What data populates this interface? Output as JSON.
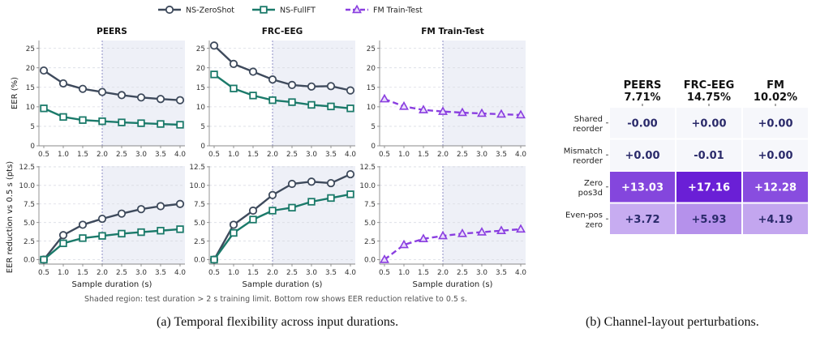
{
  "legend": {
    "items": [
      {
        "name": "NS-ZeroShot",
        "color": "#3e4a5c",
        "marker": "circle",
        "dash": false
      },
      {
        "name": "NS-FullFT",
        "color": "#1b7a6a",
        "marker": "square",
        "dash": false
      },
      {
        "name": "FM Train-Test",
        "color": "#8a3ee0",
        "marker": "triangle",
        "dash": true
      }
    ]
  },
  "panel_a": {
    "caption": "(a) Temporal flexibility across input durations.",
    "note": "Shaded region: test duration > 2 s training limit. Bottom row shows EER reduction relative to 0.5 s.",
    "xlabel": "Sample duration (s)",
    "ylabel_top": "EER (%)",
    "ylabel_bottom": "EER reduction vs 0.5 s (pts)",
    "titles": [
      "PEERS",
      "FRC-EEG",
      "FM Train-Test"
    ]
  },
  "panel_b": {
    "caption": "(b) Channel-layout perturbations.",
    "columns": [
      {
        "name": "PEERS",
        "value": "7.71%"
      },
      {
        "name": "FRC-EEG",
        "value": "14.75%"
      },
      {
        "name": "FM",
        "value": "10.02%"
      }
    ],
    "rows": [
      {
        "label": [
          "Shared",
          "reorder"
        ],
        "cells": [
          "-0.00",
          "+0.00",
          "+0.00"
        ],
        "values": [
          0.0,
          0.0,
          0.0
        ]
      },
      {
        "label": [
          "Mismatch",
          "reorder"
        ],
        "cells": [
          "+0.00",
          "-0.01",
          "+0.00"
        ],
        "values": [
          0.0,
          -0.01,
          0.0
        ]
      },
      {
        "label": [
          "Zero",
          "pos3d"
        ],
        "cells": [
          "+13.03",
          "+17.16",
          "+12.28"
        ],
        "values": [
          13.03,
          17.16,
          12.28
        ]
      },
      {
        "label": [
          "Even-pos",
          "zero"
        ],
        "cells": [
          "+3.72",
          "+5.93",
          "+4.19"
        ],
        "values": [
          3.72,
          5.93,
          4.19
        ]
      }
    ]
  },
  "chart_data": [
    {
      "type": "line",
      "title": "PEERS",
      "row": "top",
      "x": [
        0.5,
        1.0,
        1.5,
        2.0,
        2.5,
        3.0,
        3.5,
        4.0
      ],
      "xticks": [
        "0.5",
        "1.0",
        "1.5",
        "2.0",
        "2.5",
        "3.0",
        "3.5",
        "4.0"
      ],
      "ylim": [
        0,
        27
      ],
      "yticks": [
        0,
        5,
        10,
        15,
        20,
        25
      ],
      "series": [
        {
          "name": "NS-ZeroShot",
          "values": [
            19.3,
            16.0,
            14.6,
            13.8,
            13.0,
            12.4,
            12.0,
            11.7
          ]
        },
        {
          "name": "NS-FullFT",
          "values": [
            9.6,
            7.4,
            6.6,
            6.3,
            6.0,
            5.8,
            5.6,
            5.4
          ]
        }
      ]
    },
    {
      "type": "line",
      "title": "FRC-EEG",
      "row": "top",
      "x": [
        0.5,
        1.0,
        1.5,
        2.0,
        2.5,
        3.0,
        3.5,
        4.0
      ],
      "xticks": [
        "0.5",
        "1.0",
        "1.5",
        "2.0",
        "2.5",
        "3.0",
        "3.5",
        "4.0"
      ],
      "ylim": [
        0,
        27
      ],
      "yticks": [
        0,
        5,
        10,
        15,
        20,
        25
      ],
      "series": [
        {
          "name": "NS-ZeroShot",
          "values": [
            25.7,
            21.0,
            19.0,
            17.0,
            15.6,
            15.2,
            15.3,
            14.2
          ]
        },
        {
          "name": "NS-FullFT",
          "values": [
            18.3,
            14.7,
            12.9,
            11.7,
            11.2,
            10.5,
            10.1,
            9.6
          ]
        }
      ]
    },
    {
      "type": "line",
      "title": "FM Train-Test",
      "row": "top",
      "x": [
        0.5,
        1.0,
        1.5,
        2.0,
        2.5,
        3.0,
        3.5,
        4.0
      ],
      "xticks": [
        "0.5",
        "1.0",
        "1.5",
        "2.0",
        "2.5",
        "3.0",
        "3.5",
        "4.0"
      ],
      "ylim": [
        0,
        27
      ],
      "yticks": [
        0,
        5,
        10,
        15,
        20,
        25
      ],
      "series": [
        {
          "name": "FM Train-Test",
          "values": [
            12.0,
            10.1,
            9.2,
            8.8,
            8.5,
            8.3,
            8.1,
            7.9
          ]
        }
      ]
    },
    {
      "type": "line",
      "title": "",
      "row": "bottom",
      "x": [
        0.5,
        1.0,
        1.5,
        2.0,
        2.5,
        3.0,
        3.5,
        4.0
      ],
      "xticks": [
        "0.5",
        "1.0",
        "1.5",
        "2.0",
        "2.5",
        "3.0",
        "3.5",
        "4.0"
      ],
      "ylim": [
        -0.6,
        12.6
      ],
      "yticks": [
        0.0,
        2.5,
        5.0,
        7.5,
        10.0,
        12.5
      ],
      "series": [
        {
          "name": "NS-ZeroShot",
          "values": [
            0.0,
            3.3,
            4.7,
            5.5,
            6.2,
            6.8,
            7.2,
            7.5
          ]
        },
        {
          "name": "NS-FullFT",
          "values": [
            0.0,
            2.2,
            2.9,
            3.2,
            3.5,
            3.7,
            3.9,
            4.1
          ]
        }
      ]
    },
    {
      "type": "line",
      "title": "",
      "row": "bottom",
      "x": [
        0.5,
        1.0,
        1.5,
        2.0,
        2.5,
        3.0,
        3.5,
        4.0
      ],
      "xticks": [
        "0.5",
        "1.0",
        "1.5",
        "2.0",
        "2.5",
        "3.0",
        "3.5",
        "4.0"
      ],
      "ylim": [
        -0.6,
        12.6
      ],
      "yticks": [
        0.0,
        2.5,
        5.0,
        7.5,
        10.0,
        12.5
      ],
      "series": [
        {
          "name": "NS-ZeroShot",
          "values": [
            0.0,
            4.7,
            6.6,
            8.7,
            10.2,
            10.5,
            10.3,
            11.5
          ]
        },
        {
          "name": "NS-FullFT",
          "values": [
            0.0,
            3.6,
            5.4,
            6.6,
            7.0,
            7.8,
            8.3,
            8.8
          ]
        }
      ]
    },
    {
      "type": "line",
      "title": "",
      "row": "bottom",
      "x": [
        0.5,
        1.0,
        1.5,
        2.0,
        2.5,
        3.0,
        3.5,
        4.0
      ],
      "xticks": [
        "0.5",
        "1.0",
        "1.5",
        "2.0",
        "2.5",
        "3.0",
        "3.5",
        "4.0"
      ],
      "ylim": [
        -0.6,
        12.6
      ],
      "yticks": [
        0.0,
        2.5,
        5.0,
        7.5,
        10.0,
        12.5
      ],
      "series": [
        {
          "name": "FM Train-Test",
          "values": [
            0.0,
            2.0,
            2.8,
            3.2,
            3.5,
            3.7,
            3.9,
            4.1
          ]
        }
      ]
    },
    {
      "type": "heatmap",
      "columns": [
        "PEERS",
        "FRC-EEG",
        "FM"
      ],
      "rows": [
        "Shared reorder",
        "Mismatch reorder",
        "Zero pos3d",
        "Even-pos zero"
      ],
      "values": [
        [
          0.0,
          0.0,
          0.0
        ],
        [
          0.0,
          -0.01,
          0.0
        ],
        [
          13.03,
          17.16,
          12.28
        ],
        [
          3.72,
          5.93,
          4.19
        ]
      ]
    }
  ]
}
